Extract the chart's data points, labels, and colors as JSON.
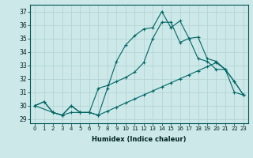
{
  "xlabel": "Humidex (Indice chaleur)",
  "bg_color": "#cde8e8",
  "grid_color": "#afd0d0",
  "line_color": "#006666",
  "xlim": [
    -0.5,
    23.5
  ],
  "ylim": [
    28.7,
    37.5
  ],
  "xticks": [
    0,
    1,
    2,
    3,
    4,
    5,
    6,
    7,
    8,
    9,
    10,
    11,
    12,
    13,
    14,
    15,
    16,
    17,
    18,
    19,
    20,
    21,
    22,
    23
  ],
  "yticks": [
    29,
    30,
    31,
    32,
    33,
    34,
    35,
    36,
    37
  ],
  "line1_x": [
    0,
    1,
    2,
    3,
    4,
    5,
    6,
    7,
    8,
    9,
    10,
    11,
    12,
    13,
    14,
    15,
    16,
    17,
    18,
    19,
    20,
    21,
    22,
    23
  ],
  "line1_y": [
    30.0,
    30.3,
    29.5,
    29.3,
    29.5,
    29.5,
    29.5,
    29.3,
    29.6,
    29.9,
    30.2,
    30.5,
    30.8,
    31.1,
    31.4,
    31.7,
    32.0,
    32.3,
    32.6,
    32.9,
    33.2,
    32.7,
    31.8,
    30.8
  ],
  "line2_x": [
    0,
    2,
    3,
    4,
    5,
    6,
    7,
    8,
    9,
    10,
    11,
    12,
    13,
    14,
    15,
    16,
    17,
    18,
    19,
    20,
    21,
    22,
    23
  ],
  "line2_y": [
    30.0,
    29.5,
    29.3,
    30.0,
    29.5,
    29.5,
    29.3,
    31.3,
    33.3,
    34.5,
    35.2,
    35.7,
    35.8,
    37.0,
    35.8,
    36.3,
    35.0,
    35.1,
    33.5,
    33.3,
    32.7,
    31.0,
    30.8
  ],
  "line3_x": [
    0,
    1,
    2,
    3,
    4,
    5,
    6,
    7,
    8,
    9,
    10,
    11,
    12,
    13,
    14,
    15,
    16,
    17,
    18,
    19,
    20,
    21,
    22,
    23
  ],
  "line3_y": [
    30.0,
    30.3,
    29.5,
    29.3,
    30.0,
    29.5,
    29.5,
    31.3,
    31.5,
    31.8,
    32.1,
    32.5,
    33.2,
    35.0,
    36.2,
    36.2,
    34.7,
    35.0,
    33.5,
    33.3,
    32.7,
    32.7,
    31.8,
    30.8
  ]
}
